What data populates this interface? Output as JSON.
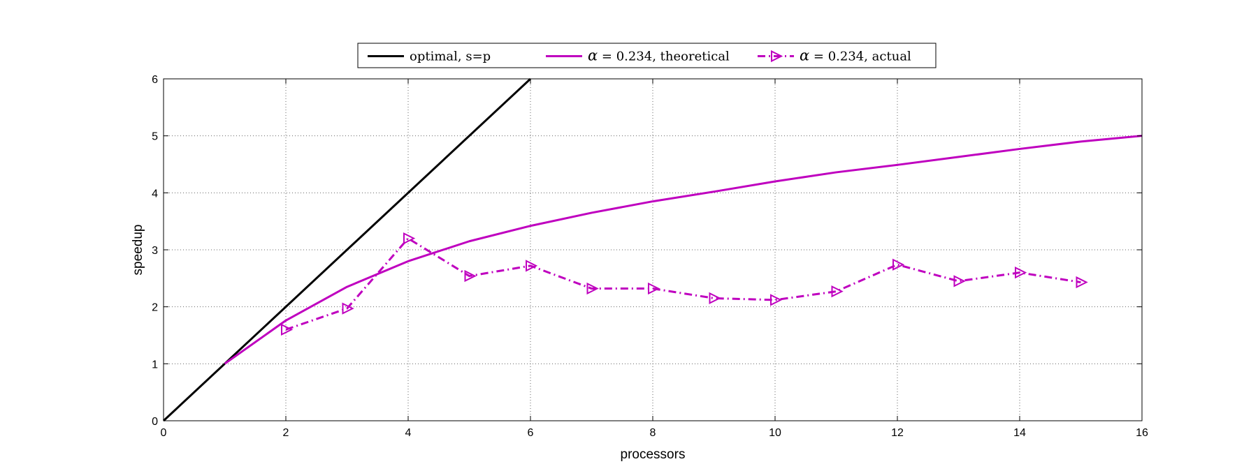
{
  "chart_data": {
    "type": "line",
    "xlabel": "processors",
    "ylabel": "speedup",
    "xlim": [
      0,
      16
    ],
    "ylim": [
      0,
      6
    ],
    "xticks": [
      0,
      2,
      4,
      6,
      8,
      10,
      12,
      14,
      16
    ],
    "yticks": [
      0,
      1,
      2,
      3,
      4,
      5,
      6
    ],
    "grid": true,
    "legend_position": "top, outside plot area",
    "series": [
      {
        "name": "optimal, s=p",
        "legend_parts": [
          "",
          "optimal, s=p"
        ],
        "color": "#000000",
        "style": "solid",
        "marker": "none",
        "x": [
          0,
          6
        ],
        "y": [
          0,
          6
        ]
      },
      {
        "name": "α = 0.234, theoretical",
        "legend_parts": [
          "α",
          " = 0.234, theoretical"
        ],
        "color": "#bf00bf",
        "style": "solid",
        "marker": "none",
        "x": [
          1,
          2,
          3,
          4,
          5,
          6,
          7,
          8,
          9,
          10,
          11,
          12,
          13,
          14,
          15,
          16
        ],
        "y": [
          1.0,
          1.76,
          2.35,
          2.8,
          3.15,
          3.42,
          3.65,
          3.85,
          4.02,
          4.2,
          4.36,
          4.49,
          4.63,
          4.77,
          4.9,
          5.0
        ]
      },
      {
        "name": "α = 0.234, actual",
        "legend_parts": [
          "α",
          " = 0.234, actual"
        ],
        "color": "#bf00bf",
        "style": "dash-dot",
        "marker": "triangle-right",
        "x": [
          2,
          3,
          4,
          5,
          6,
          7,
          8,
          9,
          10,
          11,
          12,
          13,
          14,
          15
        ],
        "y": [
          1.6,
          1.97,
          3.2,
          2.54,
          2.72,
          2.32,
          2.32,
          2.15,
          2.12,
          2.27,
          2.74,
          2.45,
          2.6,
          2.43
        ]
      }
    ]
  }
}
